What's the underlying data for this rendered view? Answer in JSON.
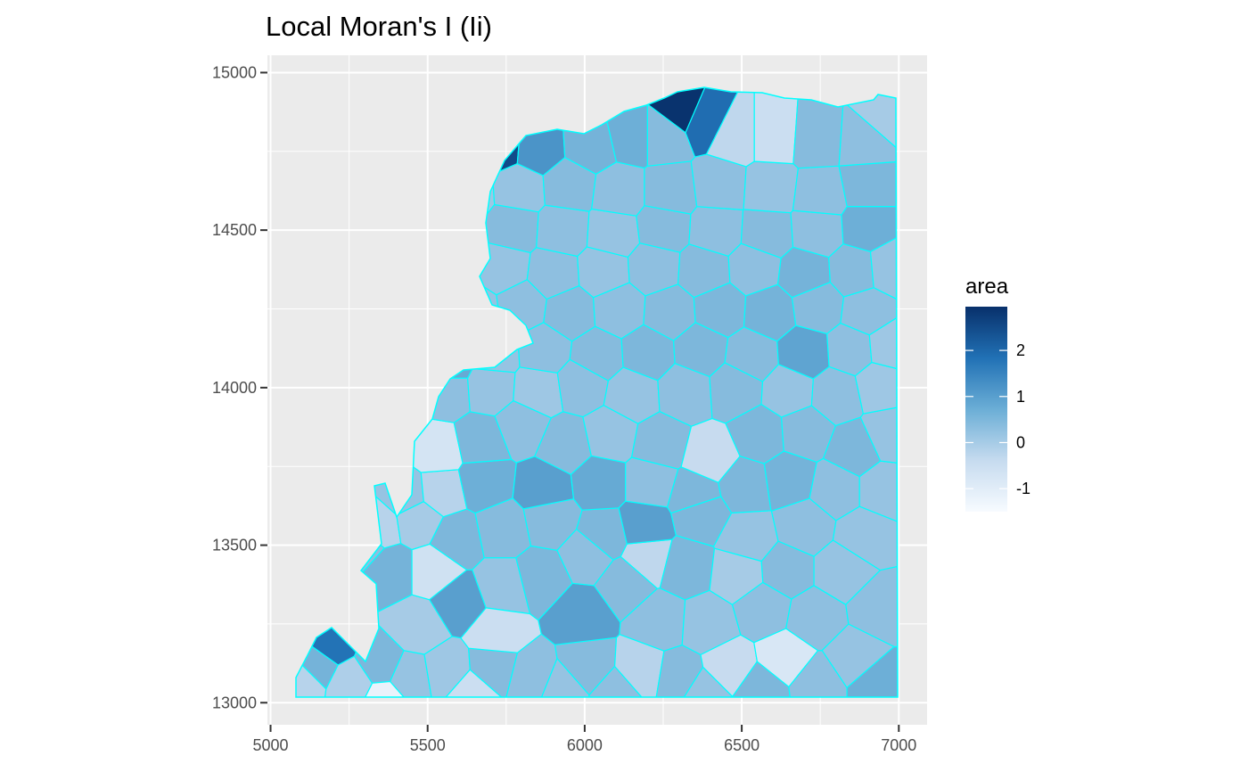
{
  "chart_data": {
    "type": "heatmap",
    "title": "Local Moran's I (Ii)",
    "xlabel": "",
    "ylabel": "",
    "xlim": [
      4990,
      7090
    ],
    "ylim": [
      12930,
      15055
    ],
    "x_ticks": [
      5000,
      5500,
      6000,
      6500,
      7000
    ],
    "y_ticks": [
      13000,
      13500,
      14000,
      14500,
      15000
    ],
    "grid": true,
    "panel_background": "#ebebeb",
    "cell_border_color": "#00ffff",
    "legend": {
      "title": "area",
      "placement": "right",
      "range": [
        -1.5,
        2.95
      ],
      "ticks": [
        -1,
        0,
        1,
        2
      ],
      "colors": [
        "#f7fbff",
        "#c6dbef",
        "#6baed6",
        "#2171b5",
        "#08306b"
      ]
    },
    "cells": [
      {
        "x": 5100,
        "y": 13080,
        "v": -0.2
      },
      {
        "x": 5190,
        "y": 13190,
        "v": 1.8
      },
      {
        "x": 5140,
        "y": 13120,
        "v": 0.6
      },
      {
        "x": 5260,
        "y": 13060,
        "v": -0.1
      },
      {
        "x": 5350,
        "y": 13120,
        "v": 0.5
      },
      {
        "x": 5440,
        "y": 13080,
        "v": 0.2
      },
      {
        "x": 5360,
        "y": 13010,
        "v": -1.2
      },
      {
        "x": 5560,
        "y": 13100,
        "v": 0.1
      },
      {
        "x": 5640,
        "y": 13030,
        "v": -0.5
      },
      {
        "x": 5710,
        "y": 13110,
        "v": 0.4
      },
      {
        "x": 5830,
        "y": 13080,
        "v": 0.3
      },
      {
        "x": 5930,
        "y": 13040,
        "v": 0.2
      },
      {
        "x": 6010,
        "y": 13110,
        "v": 0.4
      },
      {
        "x": 6100,
        "y": 13030,
        "v": 0.3
      },
      {
        "x": 6180,
        "y": 13100,
        "v": -0.2
      },
      {
        "x": 6300,
        "y": 13080,
        "v": 0.4
      },
      {
        "x": 6380,
        "y": 13030,
        "v": 0.2
      },
      {
        "x": 6460,
        "y": 13110,
        "v": -0.4
      },
      {
        "x": 6560,
        "y": 13040,
        "v": 0.5
      },
      {
        "x": 6640,
        "y": 13140,
        "v": -0.8
      },
      {
        "x": 6740,
        "y": 13060,
        "v": 0.3
      },
      {
        "x": 6860,
        "y": 13140,
        "v": 0.2
      },
      {
        "x": 6930,
        "y": 13060,
        "v": 0.7
      },
      {
        "x": 5290,
        "y": 13500,
        "v": 0.3
      },
      {
        "x": 5380,
        "y": 13420,
        "v": 0.6
      },
      {
        "x": 5470,
        "y": 13240,
        "v": 0.0
      },
      {
        "x": 5520,
        "y": 13420,
        "v": -0.6
      },
      {
        "x": 5600,
        "y": 13320,
        "v": 1.0
      },
      {
        "x": 5740,
        "y": 13370,
        "v": 0.2
      },
      {
        "x": 5720,
        "y": 13220,
        "v": -0.5
      },
      {
        "x": 5860,
        "y": 13400,
        "v": 0.5
      },
      {
        "x": 5990,
        "y": 13280,
        "v": 1.0
      },
      {
        "x": 6010,
        "y": 13470,
        "v": 0.3
      },
      {
        "x": 6130,
        "y": 13380,
        "v": 0.4
      },
      {
        "x": 6200,
        "y": 13460,
        "v": -0.3
      },
      {
        "x": 6240,
        "y": 13260,
        "v": 0.3
      },
      {
        "x": 6320,
        "y": 13430,
        "v": 0.5
      },
      {
        "x": 6390,
        "y": 13250,
        "v": 0.2
      },
      {
        "x": 6490,
        "y": 13410,
        "v": 0.0
      },
      {
        "x": 6570,
        "y": 13300,
        "v": 0.3
      },
      {
        "x": 6640,
        "y": 13420,
        "v": 0.4
      },
      {
        "x": 6730,
        "y": 13270,
        "v": 0.3
      },
      {
        "x": 6820,
        "y": 13420,
        "v": 0.2
      },
      {
        "x": 6940,
        "y": 13300,
        "v": 0.3
      },
      {
        "x": 5340,
        "y": 13560,
        "v": -0.2
      },
      {
        "x": 5470,
        "y": 13580,
        "v": 0.0
      },
      {
        "x": 5590,
        "y": 13520,
        "v": 0.5
      },
      {
        "x": 5740,
        "y": 13550,
        "v": 0.4
      },
      {
        "x": 5890,
        "y": 13580,
        "v": 0.4
      },
      {
        "x": 6060,
        "y": 13530,
        "v": 0.5
      },
      {
        "x": 6190,
        "y": 13560,
        "v": 1.0
      },
      {
        "x": 6370,
        "y": 13600,
        "v": 0.5
      },
      {
        "x": 6520,
        "y": 13520,
        "v": 0.2
      },
      {
        "x": 6700,
        "y": 13560,
        "v": 0.3
      },
      {
        "x": 6890,
        "y": 13530,
        "v": 0.2
      },
      {
        "x": 5430,
        "y": 13660,
        "v": 0.2
      },
      {
        "x": 5540,
        "y": 13670,
        "v": -0.2
      },
      {
        "x": 5680,
        "y": 13700,
        "v": 0.7
      },
      {
        "x": 5870,
        "y": 13680,
        "v": 1.0
      },
      {
        "x": 6050,
        "y": 13700,
        "v": 0.8
      },
      {
        "x": 6210,
        "y": 13700,
        "v": 0.3
      },
      {
        "x": 6350,
        "y": 13660,
        "v": 0.5
      },
      {
        "x": 6510,
        "y": 13690,
        "v": 0.5
      },
      {
        "x": 6650,
        "y": 13710,
        "v": 0.6
      },
      {
        "x": 6800,
        "y": 13680,
        "v": 0.3
      },
      {
        "x": 6950,
        "y": 13680,
        "v": 0.2
      },
      {
        "x": 5530,
        "y": 13800,
        "v": -0.7
      },
      {
        "x": 5670,
        "y": 13830,
        "v": 0.5
      },
      {
        "x": 5800,
        "y": 13880,
        "v": 0.3
      },
      {
        "x": 5940,
        "y": 13820,
        "v": 0.4
      },
      {
        "x": 6080,
        "y": 13850,
        "v": 0.2
      },
      {
        "x": 6240,
        "y": 13820,
        "v": 0.4
      },
      {
        "x": 6400,
        "y": 13780,
        "v": -0.4
      },
      {
        "x": 6560,
        "y": 13850,
        "v": 0.5
      },
      {
        "x": 6700,
        "y": 13860,
        "v": 0.4
      },
      {
        "x": 6860,
        "y": 13800,
        "v": 0.5
      },
      {
        "x": 6970,
        "y": 13850,
        "v": 0.2
      },
      {
        "x": 5560,
        "y": 13990,
        "v": 0.3
      },
      {
        "x": 5700,
        "y": 14000,
        "v": 0.2
      },
      {
        "x": 5850,
        "y": 13990,
        "v": 0.1
      },
      {
        "x": 5990,
        "y": 14010,
        "v": 0.3
      },
      {
        "x": 6150,
        "y": 13980,
        "v": 0.2
      },
      {
        "x": 6320,
        "y": 13990,
        "v": 0.3
      },
      {
        "x": 6480,
        "y": 14000,
        "v": 0.4
      },
      {
        "x": 6650,
        "y": 13990,
        "v": 0.2
      },
      {
        "x": 6800,
        "y": 13980,
        "v": 0.3
      },
      {
        "x": 6940,
        "y": 14010,
        "v": 0.1
      },
      {
        "x": 5560,
        "y": 14070,
        "v": 0.8
      },
      {
        "x": 5710,
        "y": 14110,
        "v": 0.2
      },
      {
        "x": 5870,
        "y": 14120,
        "v": 0.3
      },
      {
        "x": 6040,
        "y": 14100,
        "v": 0.4
      },
      {
        "x": 6200,
        "y": 14110,
        "v": 0.5
      },
      {
        "x": 6370,
        "y": 14120,
        "v": 0.5
      },
      {
        "x": 6530,
        "y": 14100,
        "v": 0.4
      },
      {
        "x": 6700,
        "y": 14110,
        "v": 0.9
      },
      {
        "x": 6850,
        "y": 14120,
        "v": 0.3
      },
      {
        "x": 6970,
        "y": 14130,
        "v": 0.1
      },
      {
        "x": 5520,
        "y": 14230,
        "v": 0.3
      },
      {
        "x": 5650,
        "y": 14240,
        "v": 0.2
      },
      {
        "x": 5800,
        "y": 14260,
        "v": 0.3
      },
      {
        "x": 5950,
        "y": 14240,
        "v": 0.4
      },
      {
        "x": 6110,
        "y": 14250,
        "v": 0.3
      },
      {
        "x": 6270,
        "y": 14240,
        "v": 0.4
      },
      {
        "x": 6430,
        "y": 14250,
        "v": 0.5
      },
      {
        "x": 6590,
        "y": 14240,
        "v": 0.6
      },
      {
        "x": 6740,
        "y": 14260,
        "v": 0.4
      },
      {
        "x": 6900,
        "y": 14240,
        "v": 0.3
      },
      {
        "x": 5580,
        "y": 14370,
        "v": 0.3
      },
      {
        "x": 5740,
        "y": 14380,
        "v": 0.2
      },
      {
        "x": 5900,
        "y": 14360,
        "v": 0.3
      },
      {
        "x": 6060,
        "y": 14370,
        "v": 0.2
      },
      {
        "x": 6220,
        "y": 14380,
        "v": 0.3
      },
      {
        "x": 6380,
        "y": 14370,
        "v": 0.4
      },
      {
        "x": 6540,
        "y": 14380,
        "v": 0.3
      },
      {
        "x": 6700,
        "y": 14360,
        "v": 0.6
      },
      {
        "x": 6860,
        "y": 14370,
        "v": 0.4
      },
      {
        "x": 6970,
        "y": 14380,
        "v": 0.2
      },
      {
        "x": 5600,
        "y": 14500,
        "v": 0.2
      },
      {
        "x": 5770,
        "y": 14510,
        "v": 0.4
      },
      {
        "x": 5930,
        "y": 14500,
        "v": 0.3
      },
      {
        "x": 6090,
        "y": 14490,
        "v": 0.2
      },
      {
        "x": 6250,
        "y": 14510,
        "v": 0.4
      },
      {
        "x": 6420,
        "y": 14500,
        "v": 0.3
      },
      {
        "x": 6580,
        "y": 14490,
        "v": 0.4
      },
      {
        "x": 6740,
        "y": 14500,
        "v": 0.3
      },
      {
        "x": 6900,
        "y": 14510,
        "v": 0.7
      },
      {
        "x": 5630,
        "y": 14620,
        "v": 0.1
      },
      {
        "x": 5790,
        "y": 14630,
        "v": 0.2
      },
      {
        "x": 5950,
        "y": 14640,
        "v": 0.4
      },
      {
        "x": 6110,
        "y": 14620,
        "v": 0.3
      },
      {
        "x": 6270,
        "y": 14620,
        "v": 0.4
      },
      {
        "x": 6430,
        "y": 14640,
        "v": 0.3
      },
      {
        "x": 6590,
        "y": 14630,
        "v": 0.2
      },
      {
        "x": 6750,
        "y": 14610,
        "v": 0.3
      },
      {
        "x": 6900,
        "y": 14640,
        "v": 0.5
      },
      {
        "x": 5650,
        "y": 14720,
        "v": 1.8
      },
      {
        "x": 5730,
        "y": 14770,
        "v": 2.5
      },
      {
        "x": 5850,
        "y": 14760,
        "v": 1.2
      },
      {
        "x": 6020,
        "y": 14770,
        "v": 0.6
      },
      {
        "x": 6150,
        "y": 14800,
        "v": 0.7
      },
      {
        "x": 6250,
        "y": 14800,
        "v": 0.4
      },
      {
        "x": 6310,
        "y": 14880,
        "v": 2.9
      },
      {
        "x": 6380,
        "y": 14850,
        "v": 1.9
      },
      {
        "x": 6480,
        "y": 14800,
        "v": -0.3
      },
      {
        "x": 6600,
        "y": 14800,
        "v": -0.5
      },
      {
        "x": 6740,
        "y": 14790,
        "v": 0.4
      },
      {
        "x": 6890,
        "y": 14780,
        "v": 0.3
      },
      {
        "x": 6960,
        "y": 14860,
        "v": 0.0
      }
    ]
  }
}
